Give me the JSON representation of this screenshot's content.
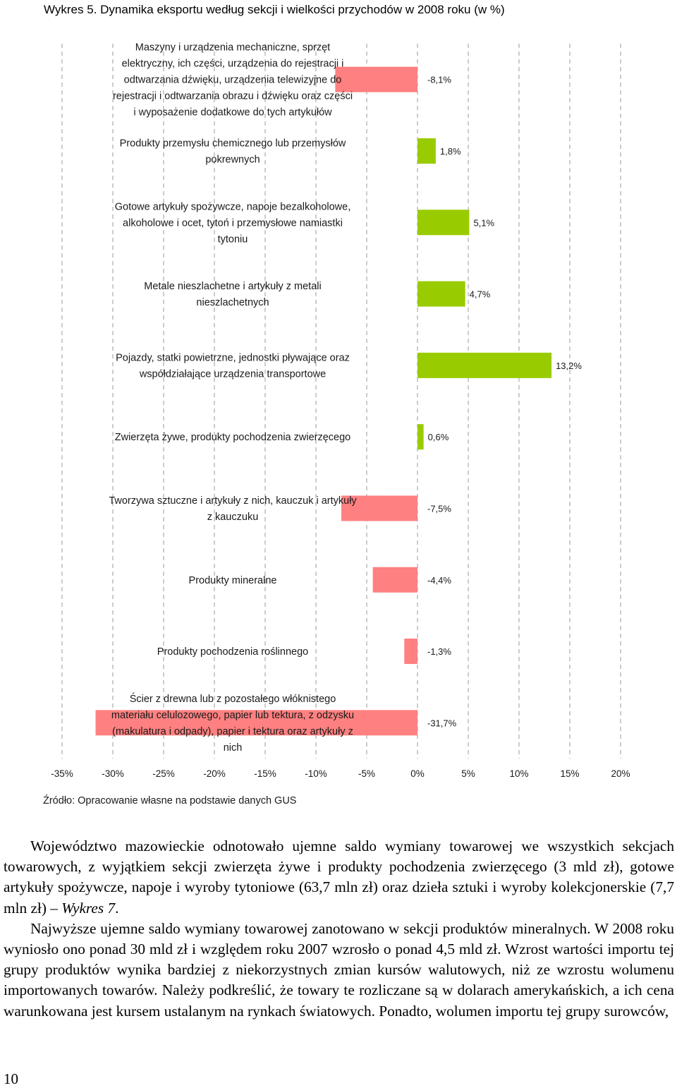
{
  "title": "Wykres 5. Dynamika eksportu według sekcji i wielkości przychodów w 2008 roku (w %)",
  "chart_data": {
    "type": "bar",
    "orientation": "horizontal",
    "title": "Wykres 5. Dynamika eksportu według sekcji i wielkości przychodów w 2008 roku (w %)",
    "xlim": [
      -35,
      20
    ],
    "xticks": [
      "-35%",
      "-30%",
      "-25%",
      "-20%",
      "-15%",
      "-10%",
      "-5%",
      "0%",
      "5%",
      "10%",
      "15%",
      "20%"
    ],
    "grid": "vertical dashed",
    "colors": {
      "positive": "#99cc00",
      "negative": "#ff8080"
    },
    "categories": [
      {
        "lines": [
          "Maszyny i urządzenia mechaniczne, sprzęt",
          "elektryczny, ich części, urządzenia do rejestracji i",
          "odtwarzania dźwięku, urządzenia telewizyjne do",
          "rejestracji i odtwarzania obrazu i dźwięku oraz części",
          "i wyposażenie dodatkowe do tych artykułów"
        ],
        "value": -8.1,
        "label": "-8,1%"
      },
      {
        "lines": [
          "Produkty przemysłu chemicznego lub przemysłów",
          "pokrewnych"
        ],
        "value": 1.8,
        "label": "1,8%"
      },
      {
        "lines": [
          "Gotowe artykuły spożywcze, napoje bezalkoholowe,",
          "alkoholowe i ocet, tytoń i przemysłowe namiastki",
          "tytoniu"
        ],
        "value": 5.1,
        "label": "5,1%"
      },
      {
        "lines": [
          "Metale nieszlachetne i artykuły z metali",
          "nieszlachetnych"
        ],
        "value": 4.7,
        "label": "4,7%"
      },
      {
        "lines": [
          "Pojazdy, statki powietrzne, jednostki pływające oraz",
          "współdziałające urządzenia transportowe"
        ],
        "value": 13.2,
        "label": "13,2%"
      },
      {
        "lines": [
          "Zwierzęta żywe, produkty pochodzenia zwierzęcego"
        ],
        "value": 0.6,
        "label": "0,6%"
      },
      {
        "lines": [
          "Tworzywa sztuczne i artykuły z nich, kauczuk i artykuły",
          "z kauczuku"
        ],
        "value": -7.5,
        "label": "-7,5%"
      },
      {
        "lines": [
          "Produkty mineralne"
        ],
        "value": -4.4,
        "label": "-4,4%"
      },
      {
        "lines": [
          "Produkty pochodzenia roślinnego"
        ],
        "value": -1.3,
        "label": "-1,3%"
      },
      {
        "lines": [
          "Ścier z drewna lub z pozostałego włóknistego",
          "materiału celulozowego, papier lub tektura, z odzysku",
          "(makulatura i odpady), papier i tektura oraz artykuły z",
          "nich"
        ],
        "value": -31.7,
        "label": "-31,7%"
      }
    ]
  },
  "source": "Źródło: Opracowanie własne na podstawie danych GUS",
  "paragraphs": [
    {
      "parts": [
        {
          "text": "Województwo mazowieckie odnotowało ujemne saldo wymiany towarowej we wszystkich sekcjach towarowych, z wyjątkiem sekcji zwierzęta żywe i produkty pochodzenia zwierzęcego (3 mld zł), gotowe artykuły spożywcze, napoje i wyroby tytoniowe (63,7 mln zł) oraz dzieła sztuki i wyroby kolekcjonerskie (7,7 mln zł) – ",
          "italic": false
        },
        {
          "text": "Wykres 7",
          "italic": true
        },
        {
          "text": ".",
          "italic": false
        }
      ]
    },
    {
      "parts": [
        {
          "text": "Najwyższe ujemne saldo wymiany towarowej zanotowano w sekcji produktów mineralnych. W 2008 roku wyniosło ono ponad 30 mld zł i względem roku 2007 wzrosło o ponad 4,5 mld zł. Wzrost wartości importu tej grupy produktów wynika bardziej z niekorzystnych zmian kursów walutowych, niż ze wzrostu wolumenu importowanych towarów. Należy podkreślić, że towary te rozliczane są w dolarach amerykańskich, a ich cena warunkowana jest kursem ustalanym na rynkach światowych. Ponadto, wolumen importu tej grupy surowców,",
          "italic": false
        }
      ]
    }
  ],
  "page_number": "10"
}
